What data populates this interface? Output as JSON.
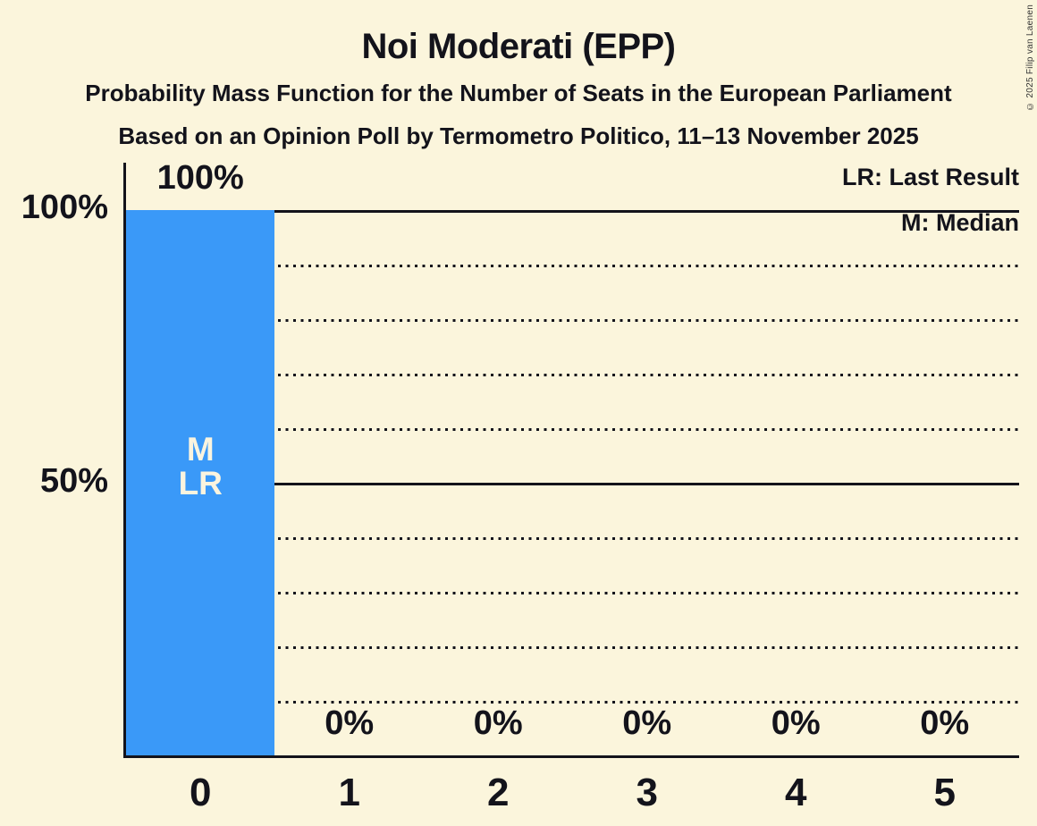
{
  "header": {
    "title": "Noi Moderati (EPP)",
    "subtitle1": "Probability Mass Function for the Number of Seats in the European Parliament",
    "subtitle2": "Based on an Opinion Poll by Termometro Politico, 11–13 November 2025"
  },
  "legend": {
    "lr": "LR: Last Result",
    "m": "M: Median"
  },
  "copyright": "© 2025 Filip van Laenen",
  "chart_data": {
    "type": "bar",
    "title": "Noi Moderati (EPP)",
    "subtitle": "Probability Mass Function for the Number of Seats in the European Parliament",
    "source_line": "Based on an Opinion Poll by Termometro Politico, 11–13 November 2025",
    "categories": [
      "0",
      "1",
      "2",
      "3",
      "4",
      "5"
    ],
    "values": [
      100,
      0,
      0,
      0,
      0,
      0
    ],
    "value_labels": [
      "100%",
      "0%",
      "0%",
      "0%",
      "0%",
      "0%"
    ],
    "ylim": [
      0,
      100
    ],
    "yticks": [
      {
        "label": "100%",
        "value": 100
      },
      {
        "label": "50%",
        "value": 50
      }
    ],
    "gridlines": {
      "dotted_every_pct": 10,
      "solid_at_pct": [
        50,
        100
      ]
    },
    "legend_entries": [
      "LR: Last Result",
      "M: Median"
    ],
    "legend_position": "top-right",
    "annotations": {
      "median_column": "0",
      "last_result_column": "0",
      "in_bar_lines": [
        "M",
        "LR"
      ]
    },
    "colors": {
      "background": "#FBF5DC",
      "bar": "#3A99F8",
      "text": "#13131B",
      "bar_label": "#FAF4DF"
    }
  }
}
